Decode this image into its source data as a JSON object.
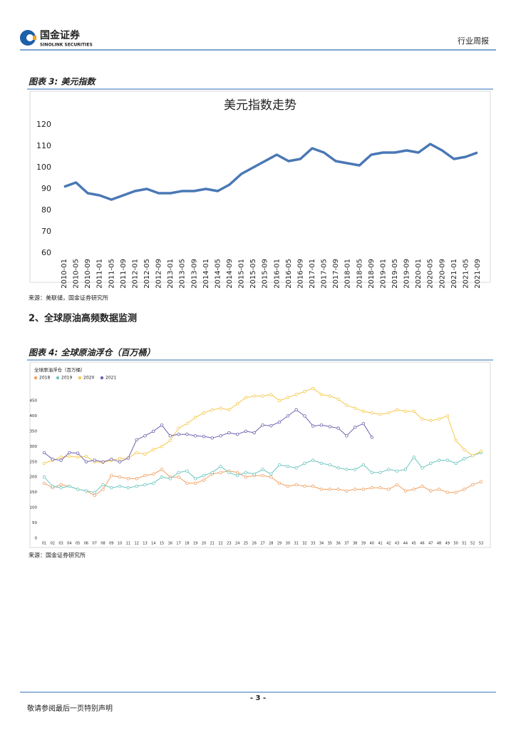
{
  "header": {
    "brand": "国金证券",
    "brand_en": "SINOLINK SECURITIES",
    "report_type": "行业周报"
  },
  "section_heading": "2、全球原油高频数据监测",
  "footer": {
    "page": "- 3 -",
    "disclaimer": "敬请参阅最后一页特别声明"
  },
  "chart_data": [
    {
      "type": "line",
      "caption": "图表 3: 美元指数",
      "title": "美元指数走势",
      "source": "来源：美联储，国金证券研究所",
      "categories": [
        "2010-01",
        "2010-05",
        "2010-09",
        "2011-01",
        "2011-05",
        "2011-09",
        "2012-01",
        "2012-05",
        "2012-09",
        "2013-01",
        "2013-05",
        "2013-09",
        "2014-01",
        "2014-05",
        "2014-09",
        "2015-01",
        "2015-05",
        "2015-09",
        "2016-01",
        "2016-05",
        "2016-09",
        "2017-01",
        "2017-05",
        "2017-09",
        "2018-01",
        "2018-05",
        "2018-09",
        "2019-01",
        "2019-05",
        "2019-09",
        "2020-01",
        "2020-05",
        "2020-09",
        "2021-01",
        "2021-05",
        "2021-09"
      ],
      "values": [
        91,
        93,
        88,
        87,
        85,
        87,
        89,
        90,
        88,
        88,
        89,
        89,
        90,
        89,
        92,
        97,
        100,
        103,
        106,
        103,
        104,
        109,
        107,
        103,
        102,
        101,
        106,
        107,
        107,
        108,
        107,
        111,
        108,
        104,
        105,
        107
      ],
      "color": "#4a78b5",
      "ylim": [
        60,
        120
      ],
      "yticks": [
        60,
        70,
        80,
        90,
        100,
        110,
        120
      ],
      "grid": false
    },
    {
      "type": "line",
      "caption": "图表 4: 全球原油浮仓（百万桶）",
      "title": "全球原油浮仓（百万桶）",
      "source": "来源：国金证券研究所",
      "categories": [
        "01",
        "02",
        "03",
        "04",
        "05",
        "06",
        "07",
        "08",
        "09",
        "10",
        "11",
        "12",
        "13",
        "14",
        "15",
        "16",
        "17",
        "18",
        "19",
        "20",
        "21",
        "22",
        "23",
        "24",
        "25",
        "26",
        "27",
        "28",
        "29",
        "30",
        "31",
        "32",
        "33",
        "34",
        "35",
        "36",
        "37",
        "38",
        "39",
        "40",
        "41",
        "42",
        "43",
        "44",
        "45",
        "46",
        "47",
        "48",
        "49",
        "50",
        "51",
        "52",
        "53"
      ],
      "series": [
        {
          "name": "2018",
          "color": "#f0a061",
          "values": [
            180,
            165,
            175,
            170,
            160,
            155,
            140,
            160,
            205,
            200,
            195,
            195,
            205,
            210,
            225,
            200,
            200,
            180,
            180,
            190,
            210,
            215,
            220,
            215,
            200,
            205,
            205,
            200,
            180,
            170,
            175,
            170,
            170,
            160,
            160,
            160,
            155,
            160,
            160,
            165,
            165,
            160,
            175,
            155,
            160,
            170,
            155,
            160,
            150,
            150,
            160,
            175,
            185
          ]
        },
        {
          "name": "2019",
          "color": "#6cc6c0",
          "values": [
            200,
            170,
            165,
            170,
            160,
            155,
            150,
            175,
            165,
            170,
            165,
            170,
            175,
            180,
            200,
            195,
            215,
            220,
            195,
            205,
            215,
            235,
            215,
            205,
            215,
            210,
            225,
            210,
            240,
            235,
            230,
            245,
            255,
            245,
            240,
            230,
            225,
            225,
            240,
            215,
            215,
            225,
            220,
            225,
            265,
            230,
            245,
            255,
            255,
            245,
            260,
            270,
            280
          ]
        },
        {
          "name": "2020",
          "color": "#f5c74a",
          "values": [
            245,
            255,
            265,
            268,
            265,
            268,
            250,
            248,
            255,
            260,
            262,
            280,
            275,
            290,
            300,
            320,
            360,
            375,
            395,
            410,
            420,
            425,
            420,
            440,
            460,
            465,
            465,
            470,
            450,
            460,
            470,
            480,
            490,
            470,
            465,
            455,
            435,
            425,
            415,
            410,
            405,
            410,
            420,
            415,
            415,
            390,
            385,
            390,
            400,
            320,
            290,
            270,
            285
          ]
        },
        {
          "name": "2021",
          "color": "#6d5fae",
          "values": [
            280,
            258,
            255,
            280,
            278,
            250,
            255,
            250,
            258,
            250,
            262,
            322,
            335,
            350,
            370,
            335,
            340,
            340,
            335,
            333,
            328,
            335,
            345,
            340,
            350,
            345,
            370,
            368,
            380,
            400,
            420,
            400,
            367,
            370,
            365,
            360,
            335,
            363,
            375,
            330,
            null,
            null,
            null,
            null,
            null,
            null,
            null,
            null,
            null,
            null,
            null,
            null,
            null
          ]
        }
      ],
      "ylim": [
        0,
        450
      ],
      "yticks": [
        0,
        50,
        100,
        150,
        200,
        250,
        300,
        350,
        400,
        450
      ],
      "grid": false
    }
  ]
}
